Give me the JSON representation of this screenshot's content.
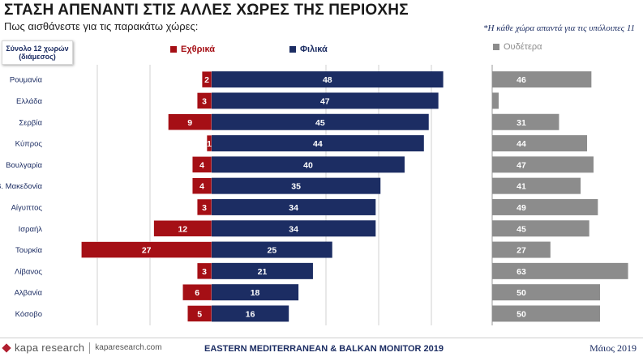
{
  "header": {
    "title": "ΣΤΑΣΗ ΑΠΕΝΑΝΤΙ ΣΤΙΣ ΑΛΛΕΣ ΧΩΡΕΣ ΤΗΣ ΠΕΡΙΟΧΗΣ",
    "subtitle": "Πως αισθάνεστε για τις παρακάτω χώρες:",
    "note": "*Η κάθε χώρα απαντά για τις υπόλοιπες 11"
  },
  "base_label": {
    "line1": "Σύνολο 12 χωρών",
    "line2": "(διάμεσος)"
  },
  "colors": {
    "hostile": "#a50f15",
    "friendly": "#1c2d63",
    "neutral": "#8c8c8c",
    "gridline": "#d0d0d0"
  },
  "chart_data": {
    "type": "bar",
    "orientation": "horizontal",
    "categories": [
      "Ρουμανία",
      "Ελλάδα",
      "Σερβία",
      "Κύπρος",
      "Βουλγαρία",
      "Β. Μακεδονία",
      "Αίγυπτος",
      "Ισραήλ",
      "Τουρκία",
      "Λίβανος",
      "Αλβανία",
      "Κόσοβο"
    ],
    "series": [
      {
        "name": "Εχθρικά",
        "values": [
          2,
          3,
          9,
          1,
          4,
          4,
          3,
          12,
          27,
          3,
          6,
          5
        ]
      },
      {
        "name": "Φιλικά",
        "values": [
          48,
          47,
          45,
          44,
          40,
          35,
          34,
          34,
          25,
          21,
          18,
          16
        ]
      },
      {
        "name": "Ουδέτερα",
        "values": [
          46,
          3,
          31,
          44,
          47,
          41,
          49,
          45,
          27,
          63,
          50,
          50
        ]
      }
    ],
    "grid": true,
    "legend": "top"
  },
  "footer": {
    "logo_text": "kapa research",
    "url": "kaparesearch.com",
    "monitor": "EASTERN MEDITERRANEAN & BALKAN MONITOR 2019",
    "date": "Μάιος 2019"
  }
}
